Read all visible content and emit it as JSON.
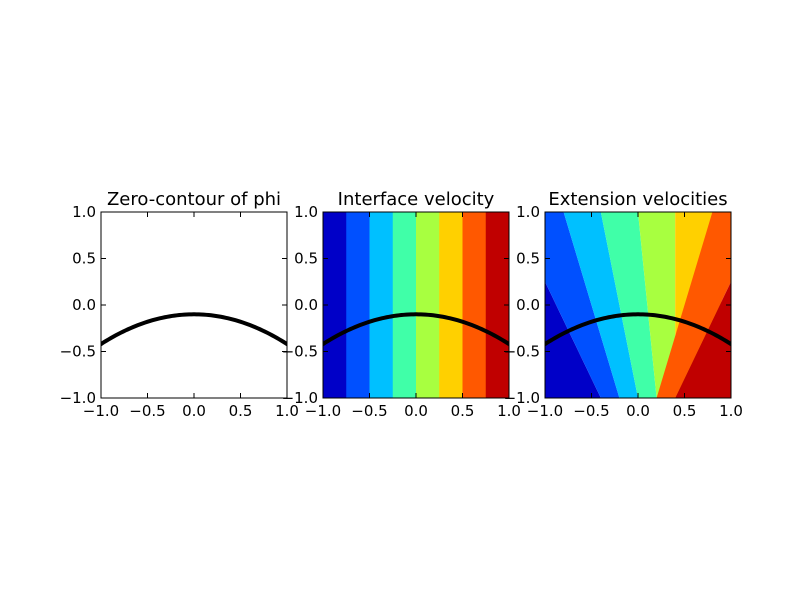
{
  "chart_data": [
    {
      "type": "line",
      "title": "Zero-contour of phi",
      "xlim": [
        -1.0,
        1.0
      ],
      "ylim": [
        -1.0,
        1.0
      ],
      "x_ticks": [
        "−1.0",
        "−0.5",
        "0.0",
        "0.5",
        "1.0"
      ],
      "y_ticks": [
        "−1.0",
        "−0.5",
        "0.0",
        "0.5",
        "1.0"
      ],
      "curve": {
        "shape": "parabola",
        "vertex": [
          0.0,
          -0.1
        ],
        "x": [
          -1.0,
          -0.5,
          0.0,
          0.5,
          1.0
        ],
        "y": [
          -0.42,
          -0.18,
          -0.1,
          -0.18,
          -0.42
        ],
        "color": "#000000"
      },
      "grid": false
    },
    {
      "type": "heatmap",
      "title": "Interface velocity",
      "xlim": [
        -1.0,
        1.0
      ],
      "ylim": [
        -1.0,
        1.0
      ],
      "x_ticks": [
        "−1.0",
        "−0.5",
        "0.0",
        "0.5",
        "1.0"
      ],
      "y_ticks": [
        "−1.0",
        "−0.5",
        "0.0",
        "0.5",
        "1.0"
      ],
      "bands": {
        "orientation": "vertical",
        "edges": [
          -1.0,
          -0.75,
          -0.5,
          -0.25,
          0.0,
          0.25,
          0.5,
          0.75,
          1.0
        ],
        "colors": [
          "#0000c8",
          "#0050ff",
          "#00c0ff",
          "#40ffa8",
          "#a8ff40",
          "#ffd000",
          "#ff5800",
          "#c00000"
        ]
      },
      "curve": {
        "shape": "parabola",
        "vertex": [
          0.0,
          -0.1
        ],
        "x": [
          -1.0,
          -0.5,
          0.0,
          0.5,
          1.0
        ],
        "y": [
          -0.42,
          -0.18,
          -0.1,
          -0.18,
          -0.42
        ],
        "color": "#000000"
      },
      "grid": false
    },
    {
      "type": "heatmap",
      "title": "Extension velocities",
      "xlim": [
        -1.0,
        1.0
      ],
      "ylim": [
        -1.0,
        1.0
      ],
      "x_ticks": [
        "−1.0",
        "−0.5",
        "0.0",
        "0.5",
        "1.0"
      ],
      "y_ticks": [
        "−1.0",
        "−0.5",
        "0.0",
        "0.5",
        "1.0"
      ],
      "bands": {
        "orientation": "fan",
        "top_edges": [
          -1.0,
          -0.8,
          -0.4,
          0.0,
          0.4,
          0.8,
          1.0
        ],
        "bottom_edges": [
          -1.0,
          -0.4,
          -0.2,
          0.0,
          0.2,
          0.4,
          1.0
        ],
        "side_edges_y": [
          0.25
        ],
        "colors": [
          "#0000c8",
          "#0050ff",
          "#00c0ff",
          "#40ffa8",
          "#a8ff40",
          "#ffd000",
          "#ff5800",
          "#c00000"
        ]
      },
      "curve": {
        "shape": "parabola",
        "vertex": [
          0.0,
          -0.1
        ],
        "x": [
          -1.0,
          -0.5,
          0.0,
          0.5,
          1.0
        ],
        "y": [
          -0.42,
          -0.18,
          -0.1,
          -0.18,
          -0.42
        ],
        "color": "#000000"
      },
      "grid": false
    }
  ]
}
